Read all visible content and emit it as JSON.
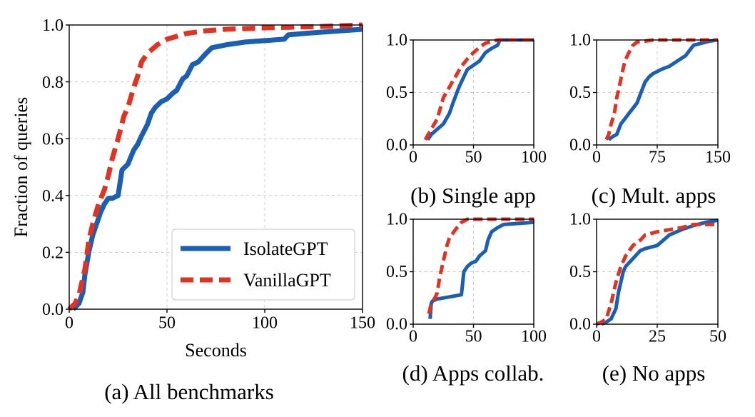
{
  "colors": {
    "isolate": "#1a5fb4",
    "vanilla": "#e03322"
  },
  "legend": {
    "entries": [
      "IsolateGPT",
      "VanillaGPT"
    ]
  },
  "chart_data": [
    {
      "id": "a",
      "type": "line",
      "caption": "(a) All benchmarks",
      "xlabel": "Seconds",
      "ylabel": "Fraction of queries",
      "xlim": [
        0,
        150
      ],
      "ylim": [
        0,
        1.0
      ],
      "xticks": [
        0,
        50,
        100,
        150
      ],
      "yticks": [
        0.0,
        0.2,
        0.4,
        0.6,
        0.8,
        1.0
      ],
      "xtick_labels": [
        "0",
        "50",
        "100",
        "150"
      ],
      "ytick_labels": [
        "0.0",
        "0.2",
        "0.4",
        "0.6",
        "0.8",
        "1.0"
      ],
      "grid": true,
      "legend_position": "bottom-right",
      "series": [
        {
          "name": "IsolateGPT",
          "x": [
            2,
            5,
            7,
            8,
            10,
            12,
            14,
            16,
            18,
            20,
            22,
            25,
            27,
            30,
            33,
            35,
            37,
            40,
            42,
            44,
            47,
            50,
            53,
            55,
            58,
            60,
            63,
            66,
            70,
            73,
            80,
            90,
            100,
            110,
            112,
            120,
            130,
            150
          ],
          "y": [
            0.0,
            0.02,
            0.06,
            0.12,
            0.2,
            0.26,
            0.3,
            0.34,
            0.37,
            0.39,
            0.39,
            0.4,
            0.49,
            0.51,
            0.56,
            0.58,
            0.61,
            0.65,
            0.69,
            0.71,
            0.73,
            0.74,
            0.76,
            0.77,
            0.81,
            0.82,
            0.86,
            0.87,
            0.9,
            0.92,
            0.93,
            0.94,
            0.945,
            0.95,
            0.965,
            0.97,
            0.975,
            0.985
          ]
        },
        {
          "name": "VanillaGPT",
          "x": [
            0,
            3,
            5,
            8,
            10,
            12,
            15,
            18,
            20,
            22,
            25,
            28,
            30,
            33,
            35,
            37,
            40,
            45,
            50,
            55,
            60,
            70,
            80,
            100,
            130,
            150
          ],
          "y": [
            0.0,
            0.02,
            0.05,
            0.14,
            0.24,
            0.3,
            0.37,
            0.42,
            0.47,
            0.53,
            0.6,
            0.68,
            0.71,
            0.78,
            0.82,
            0.87,
            0.9,
            0.93,
            0.95,
            0.96,
            0.97,
            0.98,
            0.985,
            0.99,
            0.995,
            1.0
          ]
        }
      ]
    },
    {
      "id": "b",
      "type": "line",
      "caption": "(b) Single app",
      "xlim": [
        0,
        100
      ],
      "ylim": [
        0,
        1.0
      ],
      "xticks": [
        0,
        50,
        100
      ],
      "yticks": [
        0.0,
        0.5,
        1.0
      ],
      "xtick_labels": [
        "0",
        "50",
        "100"
      ],
      "ytick_labels": [
        "0.0",
        "0.5",
        "1.0"
      ],
      "grid": true,
      "series": [
        {
          "name": "IsolateGPT",
          "x": [
            12,
            15,
            20,
            25,
            30,
            33,
            38,
            42,
            45,
            50,
            55,
            60,
            65,
            70,
            72,
            100
          ],
          "y": [
            0.05,
            0.1,
            0.15,
            0.2,
            0.3,
            0.4,
            0.55,
            0.65,
            0.72,
            0.76,
            0.8,
            0.88,
            0.92,
            0.95,
            1.0,
            1.0
          ]
        },
        {
          "name": "VanillaGPT",
          "x": [
            10,
            15,
            20,
            25,
            30,
            35,
            40,
            45,
            50,
            55,
            60,
            70,
            100
          ],
          "y": [
            0.05,
            0.15,
            0.25,
            0.45,
            0.55,
            0.65,
            0.75,
            0.82,
            0.88,
            0.93,
            0.97,
            1.0,
            1.0
          ]
        }
      ]
    },
    {
      "id": "c",
      "type": "line",
      "caption": "(c) Mult. apps",
      "xlim": [
        0,
        150
      ],
      "ylim": [
        0,
        1.0
      ],
      "xticks": [
        0,
        75,
        150
      ],
      "yticks": [
        0.0,
        0.5,
        1.0
      ],
      "xtick_labels": [
        "0",
        "75",
        "150"
      ],
      "ytick_labels": [
        "0.0",
        "0.5",
        "1.0"
      ],
      "grid": true,
      "series": [
        {
          "name": "IsolateGPT",
          "x": [
            15,
            20,
            25,
            30,
            35,
            40,
            45,
            50,
            55,
            60,
            65,
            70,
            75,
            80,
            90,
            100,
            110,
            115,
            120,
            130,
            140,
            150
          ],
          "y": [
            0.05,
            0.08,
            0.1,
            0.2,
            0.25,
            0.3,
            0.35,
            0.4,
            0.5,
            0.6,
            0.65,
            0.68,
            0.7,
            0.72,
            0.75,
            0.8,
            0.85,
            0.9,
            0.95,
            0.97,
            0.99,
            1.0
          ]
        },
        {
          "name": "VanillaGPT",
          "x": [
            12,
            15,
            18,
            22,
            25,
            28,
            32,
            35,
            40,
            45,
            50,
            60,
            70,
            150
          ],
          "y": [
            0.05,
            0.1,
            0.2,
            0.3,
            0.45,
            0.55,
            0.7,
            0.8,
            0.88,
            0.95,
            0.98,
            0.99,
            1.0,
            1.0
          ]
        }
      ]
    },
    {
      "id": "d",
      "type": "line",
      "caption": "(d) Apps collab.",
      "xlim": [
        0,
        100
      ],
      "ylim": [
        0,
        1.0
      ],
      "xticks": [
        0,
        50,
        100
      ],
      "yticks": [
        0.0,
        0.5,
        1.0
      ],
      "xtick_labels": [
        "0",
        "50",
        "100"
      ],
      "ytick_labels": [
        "0.0",
        "0.5",
        "1.0"
      ],
      "grid": true,
      "series": [
        {
          "name": "IsolateGPT",
          "x": [
            14,
            15,
            16,
            18,
            20,
            25,
            30,
            35,
            40,
            42,
            45,
            48,
            52,
            55,
            60,
            62,
            65,
            70,
            75,
            100
          ],
          "y": [
            0.05,
            0.2,
            0.22,
            0.23,
            0.24,
            0.25,
            0.26,
            0.27,
            0.28,
            0.5,
            0.55,
            0.58,
            0.6,
            0.65,
            0.7,
            0.8,
            0.88,
            0.92,
            0.95,
            0.97
          ]
        },
        {
          "name": "VanillaGPT",
          "x": [
            13,
            15,
            18,
            20,
            22,
            25,
            28,
            30,
            35,
            40,
            45,
            100
          ],
          "y": [
            0.1,
            0.2,
            0.25,
            0.3,
            0.45,
            0.6,
            0.75,
            0.82,
            0.9,
            0.97,
            1.0,
            1.0
          ]
        }
      ]
    },
    {
      "id": "e",
      "type": "line",
      "caption": "(e) No apps",
      "xlim": [
        0,
        50
      ],
      "ylim": [
        0,
        1.0
      ],
      "xticks": [
        0,
        25,
        50
      ],
      "yticks": [
        0.0,
        0.5,
        1.0
      ],
      "xtick_labels": [
        "0",
        "25",
        "50"
      ],
      "ytick_labels": [
        "0.0",
        "0.5",
        "1.0"
      ],
      "grid": true,
      "series": [
        {
          "name": "IsolateGPT",
          "x": [
            2,
            4,
            6,
            8,
            9,
            10,
            11,
            12,
            14,
            16,
            18,
            20,
            25,
            30,
            35,
            40,
            45,
            50
          ],
          "y": [
            0.0,
            0.02,
            0.05,
            0.15,
            0.3,
            0.4,
            0.5,
            0.55,
            0.6,
            0.65,
            0.7,
            0.72,
            0.75,
            0.85,
            0.9,
            0.94,
            0.97,
            0.99
          ]
        },
        {
          "name": "VanillaGPT",
          "x": [
            0,
            2,
            4,
            6,
            8,
            10,
            12,
            15,
            18,
            20,
            25,
            30,
            35,
            40,
            50
          ],
          "y": [
            0.0,
            0.02,
            0.05,
            0.2,
            0.4,
            0.55,
            0.65,
            0.75,
            0.8,
            0.85,
            0.88,
            0.9,
            0.92,
            0.95,
            0.95
          ]
        }
      ]
    }
  ]
}
